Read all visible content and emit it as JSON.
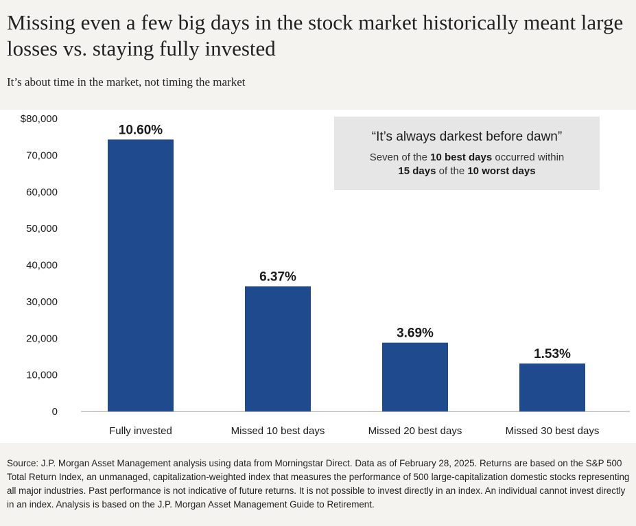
{
  "header": {
    "title": "Missing even a few big days in the stock market historically meant large losses vs. staying fully invested",
    "subtitle": "It’s about time in the market, not timing the market"
  },
  "callout": {
    "quote": "“It’s always darkest before dawn”",
    "line1_pre": "Seven of the ",
    "line1_bold": "10 best days",
    "line1_post": " occurred within",
    "line2_bold1": "15 days",
    "line2_mid": " of the ",
    "line2_bold2": "10 worst days"
  },
  "chart_data": {
    "type": "bar",
    "categories": [
      "Fully invested",
      "Missed 10 best days",
      "Missed 20 best days",
      "Missed 30 best days"
    ],
    "values": [
      74300,
      34200,
      18800,
      13100
    ],
    "data_labels": [
      "10.60%",
      "6.37%",
      "3.69%",
      "1.53%"
    ],
    "ylim": [
      0,
      80000
    ],
    "yticks": [
      {
        "value": 0,
        "label": "0"
      },
      {
        "value": 10000,
        "label": "10,000"
      },
      {
        "value": 20000,
        "label": "20,000"
      },
      {
        "value": 30000,
        "label": "30,000"
      },
      {
        "value": 40000,
        "label": "40,000"
      },
      {
        "value": 50000,
        "label": "50,000"
      },
      {
        "value": 60000,
        "label": "60,000"
      },
      {
        "value": 70000,
        "label": "70,000"
      },
      {
        "value": 80000,
        "label": "$80,000"
      }
    ],
    "bar_color": "#204a8e",
    "grid": false
  },
  "footer": {
    "source": "Source: J.P. Morgan Asset Management analysis using data from Morningstar Direct. Data as of February 28, 2025. Returns are based on the S&P 500 Total Return Index, an unmanaged, capitalization-weighted index that measures the performance of 500 large-capitalization domestic stocks representing all major industries. Past performance is not indicative of future returns. It is not possible to invest directly in an index. An individual cannot invest directly in an index. Analysis is based on the J.P. Morgan Asset Management Guide to Retirement."
  }
}
